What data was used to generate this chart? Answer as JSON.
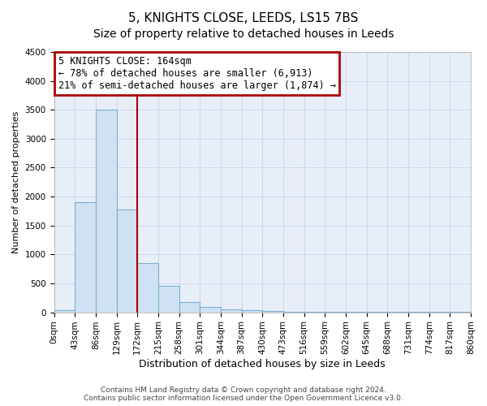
{
  "title": "5, KNIGHTS CLOSE, LEEDS, LS15 7BS",
  "subtitle": "Size of property relative to detached houses in Leeds",
  "xlabel": "Distribution of detached houses by size in Leeds",
  "ylabel": "Number of detached properties",
  "bar_values": [
    30,
    1900,
    3500,
    1780,
    850,
    460,
    170,
    90,
    50,
    30,
    20,
    5,
    5,
    5,
    5,
    5,
    5,
    5,
    5,
    5
  ],
  "bin_labels": [
    "0sqm",
    "43sqm",
    "86sqm",
    "129sqm",
    "172sqm",
    "215sqm",
    "258sqm",
    "301sqm",
    "344sqm",
    "387sqm",
    "430sqm",
    "473sqm",
    "516sqm",
    "559sqm",
    "602sqm",
    "645sqm",
    "688sqm",
    "731sqm",
    "774sqm",
    "817sqm",
    "860sqm"
  ],
  "bar_color": "#cfe2f3",
  "bar_edge_color": "#7bafd4",
  "vline_x": 4.0,
  "annotation_text": "5 KNIGHTS CLOSE: 164sqm\n← 78% of detached houses are smaller (6,913)\n21% of semi-detached houses are larger (1,874) →",
  "annotation_box_color": "#ffffff",
  "annotation_box_edge_color": "#aa0000",
  "vline_color": "#aa0000",
  "ylim": [
    0,
    4500
  ],
  "footer_text": "Contains HM Land Registry data © Crown copyright and database right 2024.\nContains public sector information licensed under the Open Government Licence v3.0.",
  "plot_bg_color": "#e8eef8",
  "fig_bg_color": "#ffffff",
  "grid_color": "#c8d4e8",
  "title_fontsize": 11,
  "subtitle_fontsize": 10,
  "xlabel_fontsize": 9,
  "ylabel_fontsize": 8,
  "tick_fontsize": 7.5,
  "annotation_fontsize": 8.5,
  "footer_fontsize": 6.5
}
